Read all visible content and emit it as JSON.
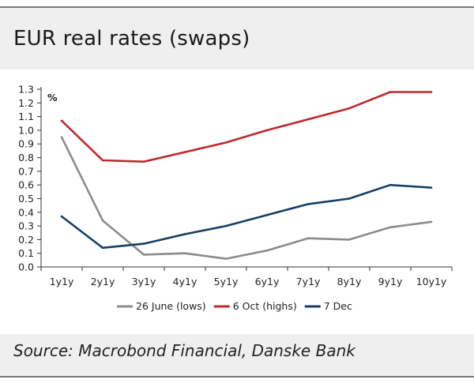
{
  "title": "EUR real rates (swaps)",
  "source": "Source: Macrobond Financial, Danske Bank",
  "chart_data": {
    "type": "line",
    "unit_label": "%",
    "categories": [
      "1y1y",
      "2y1y",
      "3y1y",
      "4y1y",
      "5y1y",
      "6y1y",
      "7y1y",
      "8y1y",
      "9y1y",
      "10y1y"
    ],
    "y_ticks": [
      "0.0",
      "0.1",
      "0.2",
      "0.3",
      "0.4",
      "0.5",
      "0.6",
      "0.7",
      "0.8",
      "0.9",
      "1.0",
      "1.1",
      "1.2",
      "1.3"
    ],
    "ylim": [
      0,
      1.3
    ],
    "grid": false,
    "legend_position": "bottom",
    "series": [
      {
        "name": "26 June (lows)",
        "color": "#8c8c8c",
        "values": [
          0.95,
          0.34,
          0.09,
          0.1,
          0.06,
          0.12,
          0.21,
          0.2,
          0.29,
          0.33
        ]
      },
      {
        "name": "6 Oct (highs)",
        "color": "#c0282d",
        "values": [
          1.07,
          0.78,
          0.77,
          0.84,
          0.91,
          1.0,
          1.08,
          1.16,
          1.28,
          1.28
        ]
      },
      {
        "name": "7 Dec",
        "color": "#143f66",
        "values": [
          0.37,
          0.14,
          0.17,
          0.24,
          0.3,
          0.38,
          0.46,
          0.5,
          0.6,
          0.58
        ]
      }
    ]
  }
}
